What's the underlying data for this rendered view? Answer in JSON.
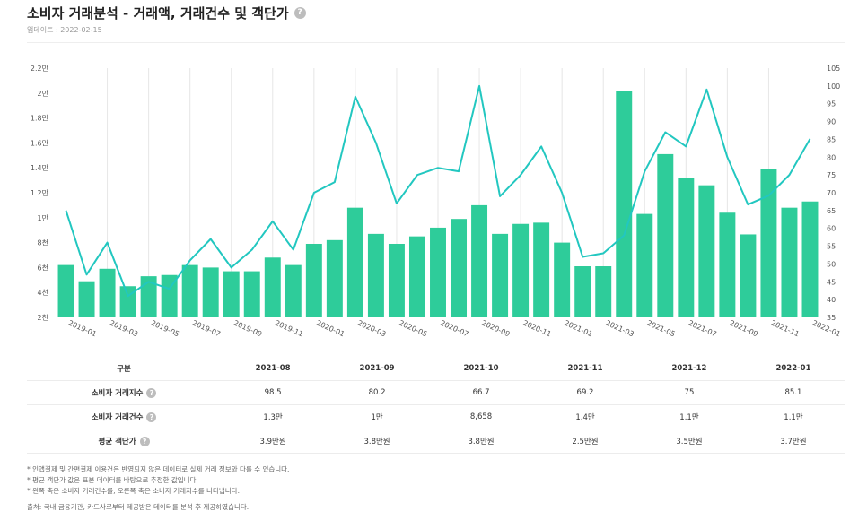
{
  "header": {
    "title": "소비자 거래분석 - 거래액, 거래건수 및 객단가",
    "help_icon": "?",
    "updated": "업데이트 : 2022-02-15"
  },
  "chart_data": {
    "type": "bar",
    "categories": [
      "2019-01",
      "2019-02",
      "2019-03",
      "2019-04",
      "2019-05",
      "2019-06",
      "2019-07",
      "2019-08",
      "2019-09",
      "2019-10",
      "2019-11",
      "2019-12",
      "2020-01",
      "2020-02",
      "2020-03",
      "2020-04",
      "2020-05",
      "2020-06",
      "2020-07",
      "2020-08",
      "2020-09",
      "2020-10",
      "2020-11",
      "2020-12",
      "2021-01",
      "2021-02",
      "2021-03",
      "2021-04",
      "2021-05",
      "2021-06",
      "2021-07",
      "2021-08",
      "2021-09",
      "2021-10",
      "2021-11",
      "2021-12",
      "2022-01"
    ],
    "x_tick_labels": [
      "2019-01",
      "2019-03",
      "2019-05",
      "2019-07",
      "2019-09",
      "2019-11",
      "2020-01",
      "2020-03",
      "2020-05",
      "2020-07",
      "2020-09",
      "2020-11",
      "2021-01",
      "2021-03",
      "2021-05",
      "2021-07",
      "2021-09",
      "2021-11",
      "2022-01"
    ],
    "series": [
      {
        "type": "bar",
        "axis": "left",
        "color": "#2ecc9a",
        "values": [
          6200,
          4900,
          5900,
          4500,
          5300,
          5400,
          6200,
          6000,
          5700,
          5700,
          6800,
          6200,
          7900,
          8200,
          10800,
          8700,
          7900,
          8500,
          9200,
          9900,
          11000,
          8700,
          9500,
          9600,
          8000,
          6100,
          6100,
          20200,
          10300,
          15100,
          13200,
          12600,
          10400,
          8658,
          13900,
          10800,
          11300
        ]
      },
      {
        "type": "line",
        "axis": "right",
        "color": "#22c7c0",
        "values": [
          65,
          47,
          56,
          41,
          45,
          43,
          51,
          57,
          49,
          54,
          62,
          54,
          70,
          73,
          97,
          84,
          67,
          75,
          77,
          76,
          100,
          69,
          75,
          83,
          70,
          52,
          53,
          58,
          76,
          87,
          83,
          99,
          80,
          66.7,
          69.2,
          75,
          85.1
        ]
      }
    ],
    "left_axis": {
      "ylim": [
        2000,
        22000
      ],
      "tick_labels": [
        "2천",
        "4천",
        "6천",
        "8천",
        "1만",
        "1.2만",
        "1.4만",
        "1.6만",
        "1.8만",
        "2만",
        "2.2만"
      ]
    },
    "right_axis": {
      "ylim": [
        35,
        105
      ],
      "tick_labels": [
        "35",
        "40",
        "45",
        "50",
        "55",
        "60",
        "65",
        "70",
        "75",
        "80",
        "85",
        "90",
        "95",
        "100",
        "105"
      ]
    },
    "grid": "vertical"
  },
  "table": {
    "header_first": "구분",
    "columns": [
      "2021-08",
      "2021-09",
      "2021-10",
      "2021-11",
      "2021-12",
      "2022-01"
    ],
    "rows": [
      {
        "label": "소비자 거래지수",
        "values": [
          "98.5",
          "80.2",
          "66.7",
          "69.2",
          "75",
          "85.1"
        ]
      },
      {
        "label": "소비자 거래건수",
        "values": [
          "1.3만",
          "1만",
          "8,658",
          "1.4만",
          "1.1만",
          "1.1만"
        ]
      },
      {
        "label": "평균 객단가",
        "values": [
          "3.9만원",
          "3.8만원",
          "3.8만원",
          "2.5만원",
          "3.5만원",
          "3.7만원"
        ]
      }
    ]
  },
  "notes": [
    "* 인앱결제 및 간편결제 이용건은 반영되지 않은 데이터로 실제 거래 정보와 다를 수 있습니다.",
    "* 평균 객단가 값은 표본 데이터를 바탕으로 추정한 값입니다.",
    "* 왼쪽 축은 소비자 거래건수를, 오른쪽 축은 소비자 거래지수를 나타냅니다."
  ],
  "source": "출처: 국내 금융기관, 카드사로부터 제공받은 데이터를 분석 후 제공하였습니다."
}
